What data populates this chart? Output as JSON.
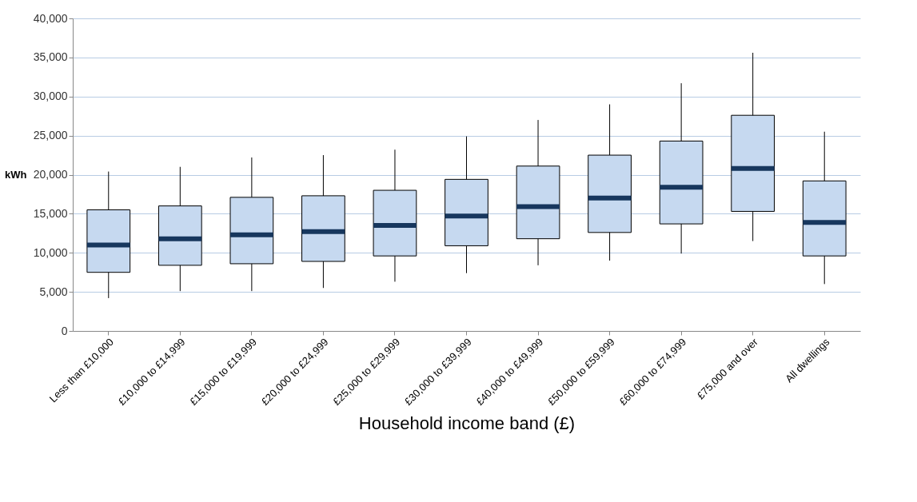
{
  "chart_data": {
    "type": "box",
    "xlabel": "Household income band (£)",
    "ylabel": "kWh",
    "categories": [
      "Less than £10,000",
      "£10,000 to £14,999",
      "£15,000 to £19,999",
      "£20,000 to £24,999",
      "£25,000 to £29,999",
      "£30,000 to £39,999",
      "£40,000 to £49,999",
      "£50,000 to £59,999",
      "£60,000 to £74,999",
      "£75,000 and over",
      "All dwellings"
    ],
    "ylim": [
      0,
      40000
    ],
    "yticks": [
      {
        "value": 0,
        "label": "0"
      },
      {
        "value": 5000,
        "label": "5,000"
      },
      {
        "value": 10000,
        "label": "10,000"
      },
      {
        "value": 15000,
        "label": "15,000"
      },
      {
        "value": 20000,
        "label": "20,000"
      },
      {
        "value": 25000,
        "label": "25,000"
      },
      {
        "value": 30000,
        "label": "30,000"
      },
      {
        "value": 35000,
        "label": "35,000"
      },
      {
        "value": 40000,
        "label": "40,000"
      }
    ],
    "grid": "y",
    "series": [
      {
        "color": "#c6d9f0",
        "boxes": [
          {
            "low": 4200,
            "q1": 7500,
            "median": 11000,
            "q3": 15500,
            "high": 20400
          },
          {
            "low": 5100,
            "q1": 8400,
            "median": 11800,
            "q3": 16000,
            "high": 21000
          },
          {
            "low": 5100,
            "q1": 8600,
            "median": 12300,
            "q3": 17100,
            "high": 22200
          },
          {
            "low": 5500,
            "q1": 8900,
            "median": 12700,
            "q3": 17300,
            "high": 22500
          },
          {
            "low": 6300,
            "q1": 9600,
            "median": 13500,
            "q3": 18000,
            "high": 23200
          },
          {
            "low": 7400,
            "q1": 10900,
            "median": 14700,
            "q3": 19400,
            "high": 24900
          },
          {
            "low": 8400,
            "q1": 11800,
            "median": 15900,
            "q3": 21100,
            "high": 27000
          },
          {
            "low": 9000,
            "q1": 12600,
            "median": 17000,
            "q3": 22500,
            "high": 29000
          },
          {
            "low": 9900,
            "q1": 13700,
            "median": 18400,
            "q3": 24300,
            "high": 31700
          },
          {
            "low": 11500,
            "q1": 15300,
            "median": 20800,
            "q3": 27600,
            "high": 35600
          },
          {
            "low": 6000,
            "q1": 9600,
            "median": 13900,
            "q3": 19200,
            "high": 25500
          }
        ]
      }
    ]
  }
}
